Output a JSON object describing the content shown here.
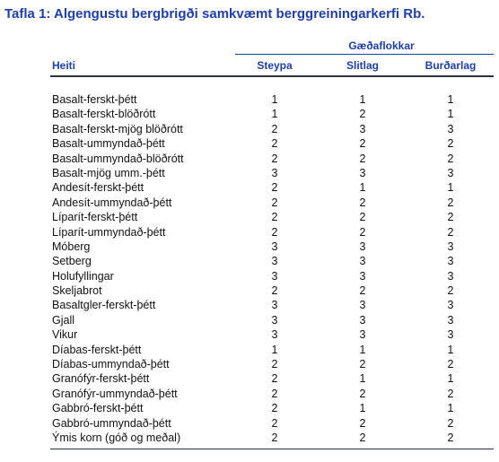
{
  "title": "Tafla 1: Algengustu bergbrigði samkvæmt berggreiningarkerfi Rb.",
  "group_header": "Gæðaflokkar",
  "columns": {
    "name": "Heiti",
    "c1": "Steypa",
    "c2": "Slitlag",
    "c3": "Burðarlag"
  },
  "rows": [
    {
      "name": "Basalt-ferskt-þétt",
      "c1": "1",
      "c2": "1",
      "c3": "1"
    },
    {
      "name": "Basalt-ferskt-blöðrótt",
      "c1": "1",
      "c2": "2",
      "c3": "1"
    },
    {
      "name": "Basalt-ferskt-mjög blöðrótt",
      "c1": "2",
      "c2": "3",
      "c3": "3"
    },
    {
      "name": "Basalt-ummyndað-þétt",
      "c1": "2",
      "c2": "2",
      "c3": "2"
    },
    {
      "name": "Basalt-ummyndað-blöðrótt",
      "c1": "2",
      "c2": "2",
      "c3": "2"
    },
    {
      "name": "Basalt-mjög umm.-þétt",
      "c1": "3",
      "c2": "3",
      "c3": "3"
    },
    {
      "name": "Andesít-ferskt-þétt",
      "c1": "2",
      "c2": "1",
      "c3": "1"
    },
    {
      "name": "Andesít-ummyndað-þétt",
      "c1": "2",
      "c2": "2",
      "c3": "2"
    },
    {
      "name": "Líparít-ferskt-þétt",
      "c1": "2",
      "c2": "2",
      "c3": "2"
    },
    {
      "name": "Líparít-ummyndað-þétt",
      "c1": "2",
      "c2": "2",
      "c3": "2"
    },
    {
      "name": "Móberg",
      "c1": "3",
      "c2": "3",
      "c3": "3"
    },
    {
      "name": "Setberg",
      "c1": "3",
      "c2": "3",
      "c3": "3"
    },
    {
      "name": "Holufyllingar",
      "c1": "3",
      "c2": "3",
      "c3": "3"
    },
    {
      "name": "Skeljabrot",
      "c1": "2",
      "c2": "2",
      "c3": "2"
    },
    {
      "name": "Basaltgler-ferskt-þétt",
      "c1": "3",
      "c2": "3",
      "c3": "3"
    },
    {
      "name": "Gjall",
      "c1": "3",
      "c2": "3",
      "c3": "3"
    },
    {
      "name": "Vikur",
      "c1": "3",
      "c2": "3",
      "c3": "3"
    },
    {
      "name": "Díabas-ferskt-þétt",
      "c1": "1",
      "c2": "1",
      "c3": "1"
    },
    {
      "name": "Díabas-ummyndað-þétt",
      "c1": "2",
      "c2": "2",
      "c3": "2"
    },
    {
      "name": "Granófýr-ferskt-þétt",
      "c1": "2",
      "c2": "1",
      "c3": "1"
    },
    {
      "name": "Granófýr-ummyndað-þétt",
      "c1": "2",
      "c2": "2",
      "c3": "2"
    },
    {
      "name": "Gabbró-ferskt-þétt",
      "c1": "2",
      "c2": "1",
      "c3": "1"
    },
    {
      "name": "Gabbró-ummyndað-þétt",
      "c1": "2",
      "c2": "2",
      "c3": "2"
    },
    {
      "name": "Ýmis korn (góð og meðal)",
      "c1": "2",
      "c2": "2",
      "c3": "2"
    }
  ]
}
